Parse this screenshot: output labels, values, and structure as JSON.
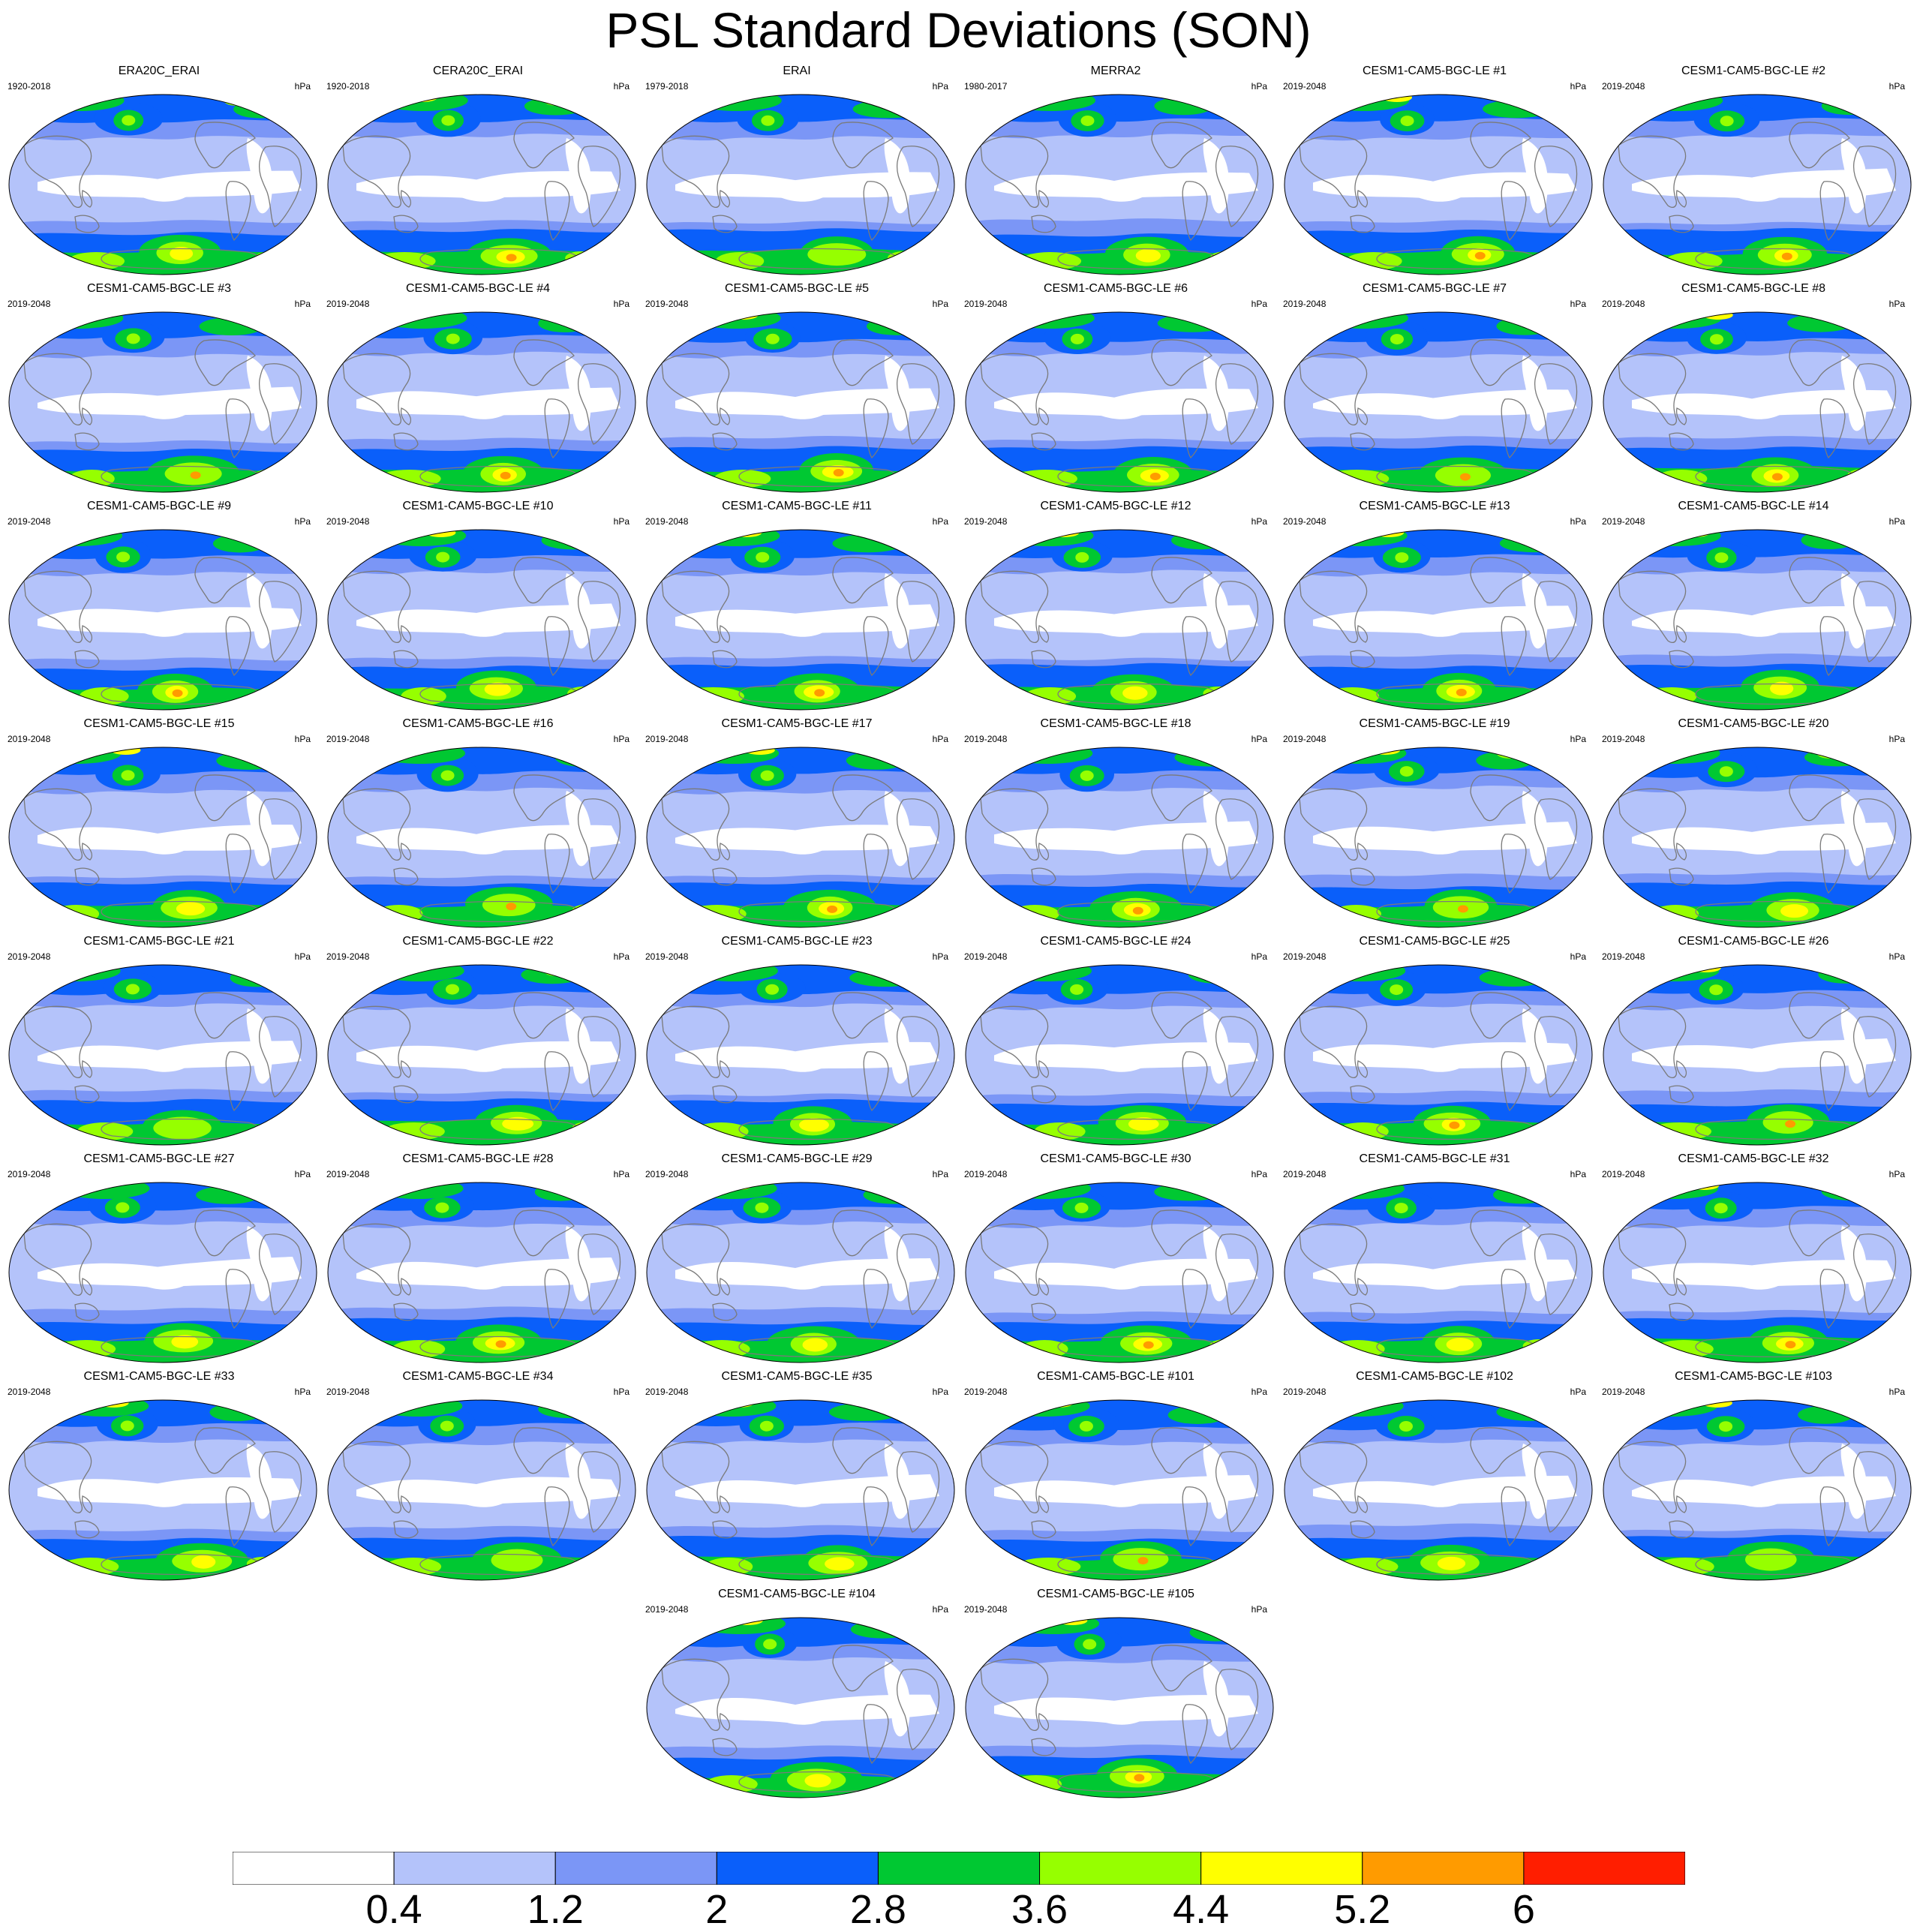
{
  "title": "PSL Standard Deviations (SON)",
  "units": "hPa",
  "colorbar": {
    "labels": [
      "0.4",
      "1.2",
      "2",
      "2.8",
      "3.6",
      "4.4",
      "5.2",
      "6"
    ],
    "colors": [
      "#ffffff",
      "#b4c3fa",
      "#7b96f6",
      "#0a5ffa",
      "#00c832",
      "#96ff00",
      "#ffff00",
      "#ff9b00",
      "#ff1e00"
    ]
  },
  "panels": [
    {
      "title": "ERA20C_ERAI",
      "years": "1920-2018"
    },
    {
      "title": "CERA20C_ERAI",
      "years": "1920-2018"
    },
    {
      "title": "ERAI",
      "years": "1979-2018"
    },
    {
      "title": "MERRA2",
      "years": "1980-2017"
    },
    {
      "title": "CESM1-CAM5-BGC-LE #1",
      "years": "2019-2048"
    },
    {
      "title": "CESM1-CAM5-BGC-LE #2",
      "years": "2019-2048"
    },
    {
      "title": "CESM1-CAM5-BGC-LE #3",
      "years": "2019-2048"
    },
    {
      "title": "CESM1-CAM5-BGC-LE #4",
      "years": "2019-2048"
    },
    {
      "title": "CESM1-CAM5-BGC-LE #5",
      "years": "2019-2048"
    },
    {
      "title": "CESM1-CAM5-BGC-LE #6",
      "years": "2019-2048"
    },
    {
      "title": "CESM1-CAM5-BGC-LE #7",
      "years": "2019-2048"
    },
    {
      "title": "CESM1-CAM5-BGC-LE #8",
      "years": "2019-2048"
    },
    {
      "title": "CESM1-CAM5-BGC-LE #9",
      "years": "2019-2048"
    },
    {
      "title": "CESM1-CAM5-BGC-LE #10",
      "years": "2019-2048"
    },
    {
      "title": "CESM1-CAM5-BGC-LE #11",
      "years": "2019-2048"
    },
    {
      "title": "CESM1-CAM5-BGC-LE #12",
      "years": "2019-2048"
    },
    {
      "title": "CESM1-CAM5-BGC-LE #13",
      "years": "2019-2048"
    },
    {
      "title": "CESM1-CAM5-BGC-LE #14",
      "years": "2019-2048"
    },
    {
      "title": "CESM1-CAM5-BGC-LE #15",
      "years": "2019-2048"
    },
    {
      "title": "CESM1-CAM5-BGC-LE #16",
      "years": "2019-2048"
    },
    {
      "title": "CESM1-CAM5-BGC-LE #17",
      "years": "2019-2048"
    },
    {
      "title": "CESM1-CAM5-BGC-LE #18",
      "years": "2019-2048"
    },
    {
      "title": "CESM1-CAM5-BGC-LE #19",
      "years": "2019-2048"
    },
    {
      "title": "CESM1-CAM5-BGC-LE #20",
      "years": "2019-2048"
    },
    {
      "title": "CESM1-CAM5-BGC-LE #21",
      "years": "2019-2048"
    },
    {
      "title": "CESM1-CAM5-BGC-LE #22",
      "years": "2019-2048"
    },
    {
      "title": "CESM1-CAM5-BGC-LE #23",
      "years": "2019-2048"
    },
    {
      "title": "CESM1-CAM5-BGC-LE #24",
      "years": "2019-2048"
    },
    {
      "title": "CESM1-CAM5-BGC-LE #25",
      "years": "2019-2048"
    },
    {
      "title": "CESM1-CAM5-BGC-LE #26",
      "years": "2019-2048"
    },
    {
      "title": "CESM1-CAM5-BGC-LE #27",
      "years": "2019-2048"
    },
    {
      "title": "CESM1-CAM5-BGC-LE #28",
      "years": "2019-2048"
    },
    {
      "title": "CESM1-CAM5-BGC-LE #29",
      "years": "2019-2048"
    },
    {
      "title": "CESM1-CAM5-BGC-LE #30",
      "years": "2019-2048"
    },
    {
      "title": "CESM1-CAM5-BGC-LE #31",
      "years": "2019-2048"
    },
    {
      "title": "CESM1-CAM5-BGC-LE #32",
      "years": "2019-2048"
    },
    {
      "title": "CESM1-CAM5-BGC-LE #33",
      "years": "2019-2048"
    },
    {
      "title": "CESM1-CAM5-BGC-LE #34",
      "years": "2019-2048"
    },
    {
      "title": "CESM1-CAM5-BGC-LE #35",
      "years": "2019-2048"
    },
    {
      "title": "CESM1-CAM5-BGC-LE #101",
      "years": "2019-2048"
    },
    {
      "title": "CESM1-CAM5-BGC-LE #102",
      "years": "2019-2048"
    },
    {
      "title": "CESM1-CAM5-BGC-LE #103",
      "years": "2019-2048"
    },
    {
      "title": "CESM1-CAM5-BGC-LE #104",
      "years": "2019-2048"
    },
    {
      "title": "CESM1-CAM5-BGC-LE #105",
      "years": "2019-2048"
    }
  ]
}
